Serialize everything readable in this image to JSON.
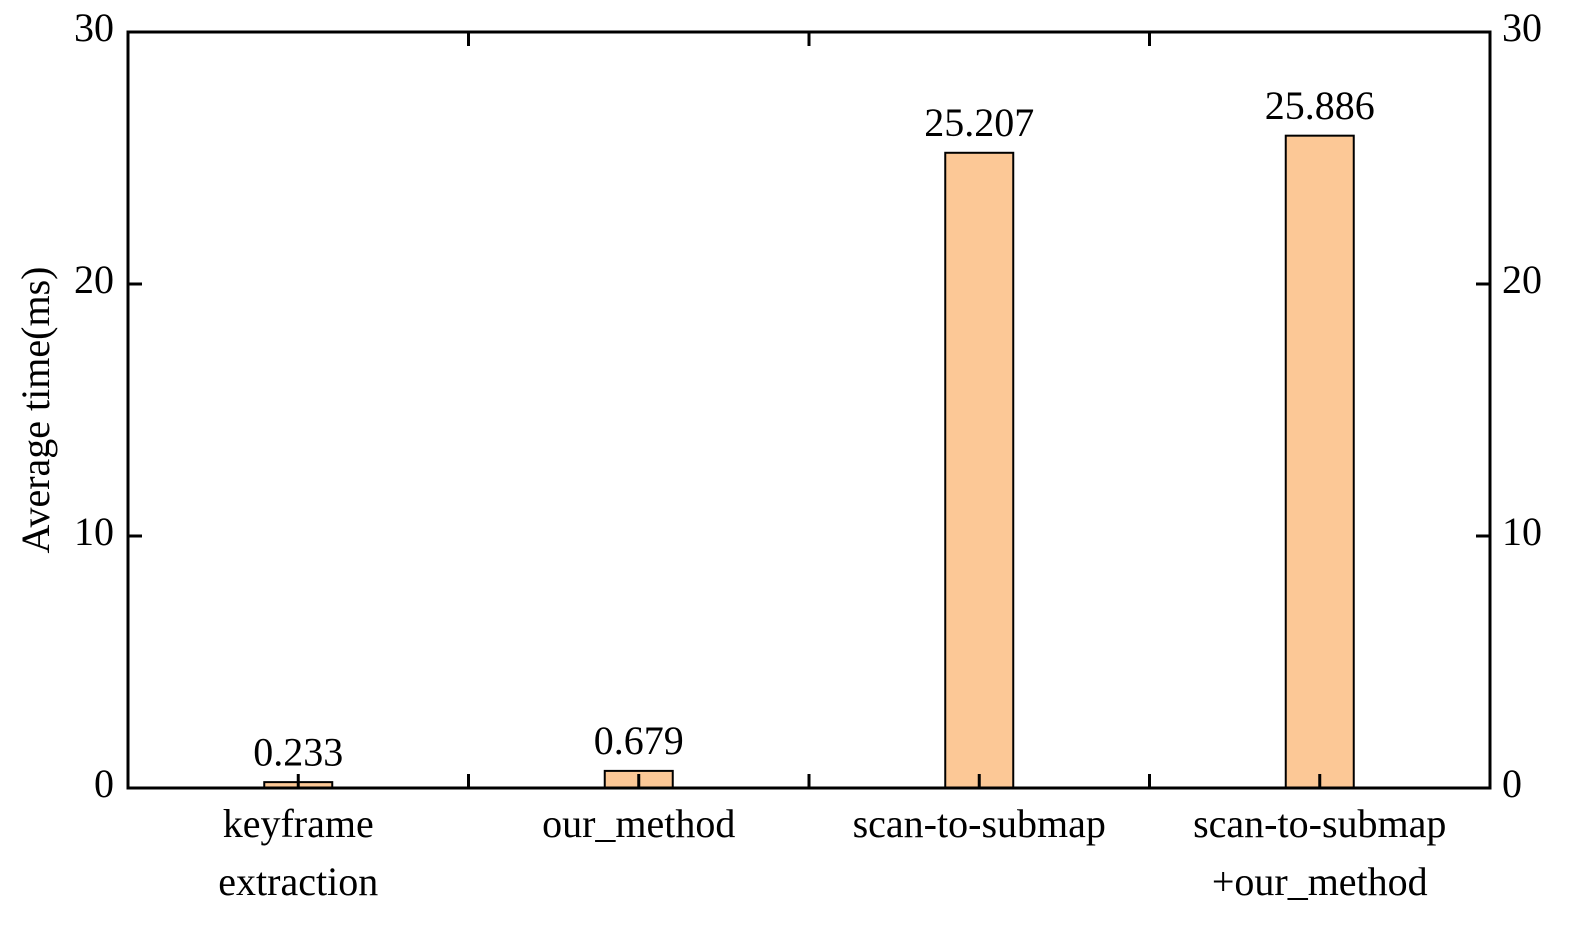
{
  "chart_data": {
    "type": "bar",
    "y_label": "Average time(ms)",
    "categories": [
      [
        "keyframe",
        "extraction"
      ],
      [
        "our_method"
      ],
      [
        "scan-to-submap"
      ],
      [
        "scan-to-submap",
        "+our_method"
      ]
    ],
    "values": [
      0.233,
      0.679,
      25.207,
      25.886
    ],
    "color": "#fcc896",
    "ylim": [
      0,
      30
    ],
    "yticks": [
      0,
      10,
      20,
      30
    ],
    "y2lim": [
      0,
      30
    ],
    "y2ticks": [
      0,
      10,
      20,
      30
    ],
    "grid": false
  }
}
